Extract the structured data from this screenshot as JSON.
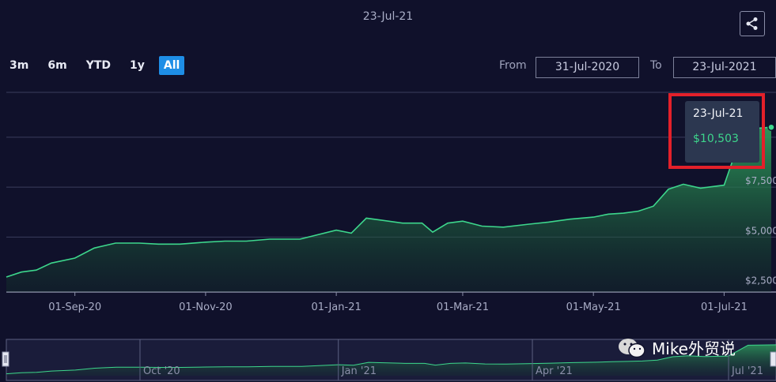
{
  "header": {
    "date": "23-Jul-21"
  },
  "range_selector": {
    "buttons": [
      "3m",
      "6m",
      "YTD",
      "1y",
      "All"
    ],
    "active": "All"
  },
  "date_range": {
    "from_label": "From",
    "from_value": "31-Jul-2020",
    "to_label": "To",
    "to_value": "23-Jul-2021"
  },
  "tooltip": {
    "date": "23-Jul-21",
    "value": "$10,503"
  },
  "colors": {
    "line": "#3dd68c",
    "fill": "#2e9e5e",
    "background": "#10112b",
    "highlight": "#e3202a",
    "active_button": "#1e8ee6"
  },
  "watermark": {
    "text": "Mike外贸说"
  },
  "chart_data": {
    "type": "area",
    "x_start": "2020-07-31",
    "x_end": "2021-07-23",
    "dates": [
      "2020-07-31",
      "2020-08-07",
      "2020-08-14",
      "2020-08-21",
      "2020-09-01",
      "2020-09-10",
      "2020-09-20",
      "2020-10-01",
      "2020-10-10",
      "2020-10-20",
      "2020-11-01",
      "2020-11-10",
      "2020-11-20",
      "2020-12-01",
      "2020-12-15",
      "2021-01-01",
      "2021-01-08",
      "2021-01-15",
      "2021-01-22",
      "2021-02-01",
      "2021-02-10",
      "2021-02-15",
      "2021-02-22",
      "2021-03-01",
      "2021-03-10",
      "2021-03-20",
      "2021-04-01",
      "2021-04-10",
      "2021-04-20",
      "2021-05-01",
      "2021-05-08",
      "2021-05-15",
      "2021-05-22",
      "2021-05-29",
      "2021-06-05",
      "2021-06-12",
      "2021-06-20",
      "2021-07-01",
      "2021-07-10",
      "2021-07-23"
    ],
    "values": [
      3000,
      3250,
      3350,
      3700,
      3950,
      4450,
      4700,
      4700,
      4650,
      4650,
      4750,
      4800,
      4800,
      4900,
      4900,
      5350,
      5200,
      5950,
      5850,
      5700,
      5700,
      5250,
      5700,
      5800,
      5550,
      5500,
      5650,
      5750,
      5900,
      6000,
      6150,
      6200,
      6300,
      6550,
      7400,
      7650,
      7450,
      7600,
      10400,
      10503
    ],
    "ytick_labels": [
      "$2,500",
      "$5,000",
      "$7,500"
    ],
    "yticks": [
      2500,
      5000,
      7500
    ],
    "ylim": [
      2250,
      12250
    ],
    "xtick_labels": [
      "01-Sep-20",
      "01-Nov-20",
      "01-Jan-21",
      "01-Mar-21",
      "01-May-21",
      "01-Jul-21"
    ],
    "xtick_dates": [
      "2020-09-01",
      "2020-11-01",
      "2021-01-01",
      "2021-03-01",
      "2021-05-01",
      "2021-07-01"
    ],
    "grid": true,
    "navigator_labels": [
      "Oct '20",
      "Jan '21",
      "Apr '21",
      "Jul '21"
    ],
    "navigator_dates": [
      "2020-10-01",
      "2021-01-01",
      "2021-04-01",
      "2021-07-01"
    ]
  }
}
